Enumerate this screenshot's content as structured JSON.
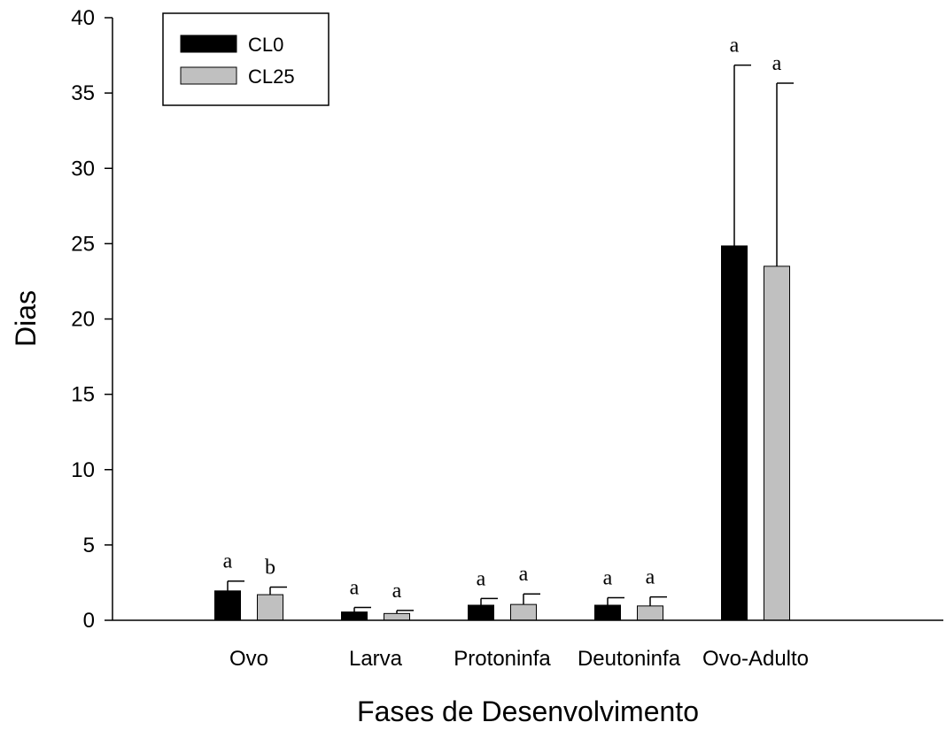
{
  "chart_data": {
    "type": "bar",
    "xlabel": "Fases de Desenvolvimento",
    "ylabel": "Dias",
    "ylim": [
      0,
      40
    ],
    "yticks": [
      0,
      5,
      10,
      15,
      20,
      25,
      30,
      35,
      40
    ],
    "grid": false,
    "legend_position": "top-left",
    "categories": [
      "Ovo",
      "Larva",
      "Protoninfa",
      "Deutoninfa",
      "Ovo-Adulto"
    ],
    "series": [
      {
        "name": "CL0",
        "color": "#000000",
        "values": [
          1.95,
          0.55,
          1.0,
          1.0,
          24.85
        ],
        "errors": [
          0.65,
          0.3,
          0.45,
          0.5,
          12.0
        ],
        "labels": [
          "a",
          "a",
          "a",
          "a",
          "a"
        ]
      },
      {
        "name": "CL25",
        "color": "#c0c0c0",
        "values": [
          1.7,
          0.45,
          1.05,
          0.95,
          23.5
        ],
        "errors": [
          0.5,
          0.2,
          0.7,
          0.6,
          12.15
        ],
        "labels": [
          "b",
          "a",
          "a",
          "a",
          "a"
        ]
      }
    ]
  }
}
